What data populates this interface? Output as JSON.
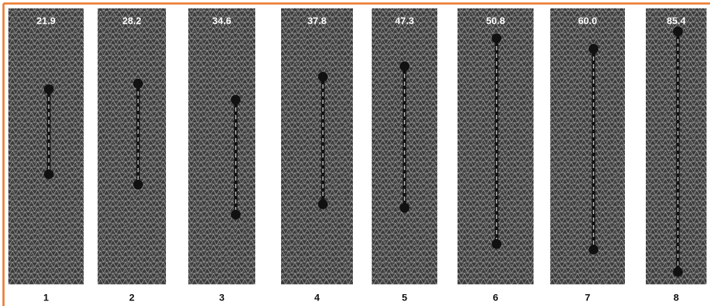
{
  "panels": [
    {
      "value": "21.9",
      "label": "1"
    },
    {
      "value": "28.2",
      "label": "2"
    },
    {
      "value": "34.6",
      "label": "3"
    },
    {
      "value": "37.8",
      "label": "4"
    },
    {
      "value": "47.3",
      "label": "5"
    },
    {
      "value": "50.8",
      "label": "6"
    },
    {
      "value": "60.0",
      "label": "7"
    },
    {
      "value": "85.4",
      "label": "8"
    }
  ]
}
